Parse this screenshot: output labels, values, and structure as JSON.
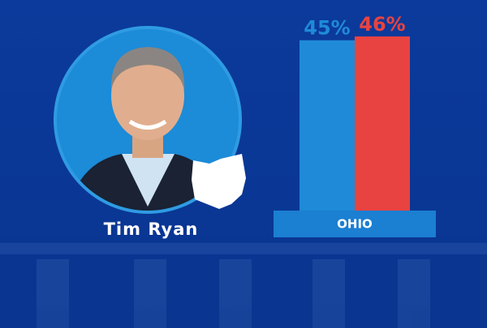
{
  "chart_data": {
    "type": "bar",
    "categories": [
      null,
      null
    ],
    "values": [
      45,
      46
    ],
    "value_labels": [
      "45%",
      "46%"
    ],
    "colors": [
      "#1f8ad8",
      "#e84340"
    ],
    "candidate": "Tim Ryan",
    "region_label": "OHIO"
  }
}
